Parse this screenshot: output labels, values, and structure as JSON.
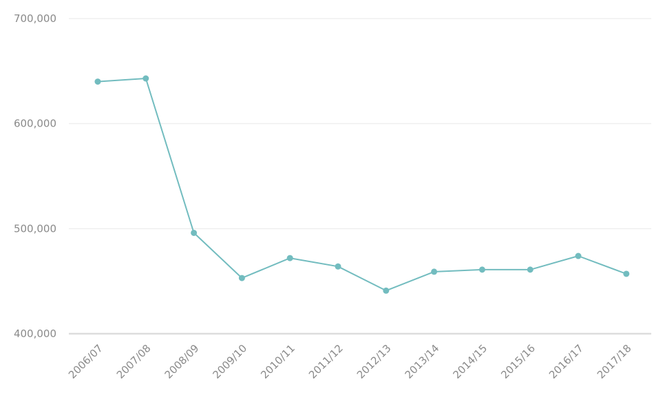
{
  "chart_data": {
    "type": "line",
    "title": "",
    "xlabel": "",
    "ylabel": "",
    "categories": [
      "2006/07",
      "2007/08",
      "2008/09",
      "2009/10",
      "2010/11",
      "2011/12",
      "2012/13",
      "2013/14",
      "2014/15",
      "2015/16",
      "2016/17",
      "2017/18"
    ],
    "series": [
      {
        "values": [
          640000,
          643000,
          496000,
          453000,
          472000,
          464000,
          441000,
          459000,
          461000,
          461000,
          474000,
          457000
        ]
      }
    ],
    "ylim": [
      400000,
      700000
    ],
    "y_ticks": [
      {
        "value": 400000,
        "label": "400,000"
      },
      {
        "value": 500000,
        "label": "500,000"
      },
      {
        "value": 600000,
        "label": "600,000"
      },
      {
        "value": 700000,
        "label": "700,000"
      }
    ],
    "grid": true,
    "legend": "none",
    "colors": {
      "line": "#72bcbf",
      "grid": "#efefef",
      "baseline": "#dddddd",
      "tick_text": "#8a8a8a"
    }
  }
}
